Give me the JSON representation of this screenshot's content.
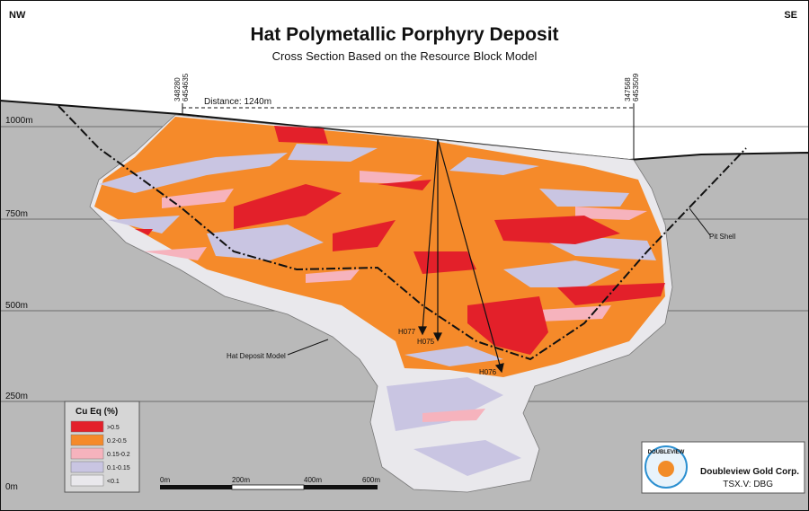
{
  "header": {
    "left": "NW",
    "right": "SE",
    "title": "Hat Polymetallic Porphyry Deposit",
    "subtitle": "Cross Section Based on the Resource Block Model"
  },
  "section": {
    "collar_left": [
      "348280",
      "6454635"
    ],
    "collar_right": [
      "347568",
      "6453509"
    ],
    "distance": "Distance: 1240m",
    "elevations": [
      "1000m",
      "750m",
      "500m",
      "250m",
      "0m"
    ],
    "pit_shell": "Pit Shell",
    "deposit_model": "Hat Deposit Model",
    "holes": [
      "H077",
      "H075",
      "H076"
    ]
  },
  "legend": {
    "title": "Cu Eq (%)",
    "items": [
      {
        "label": ">0.5",
        "color": "#e3202a"
      },
      {
        "label": "0.2-0.5",
        "color": "#f58a2a"
      },
      {
        "label": "0.15-0.2",
        "color": "#f6b3bd"
      },
      {
        "label": "0.1-0.15",
        "color": "#c9c5e2"
      },
      {
        "label": "<0.1",
        "color": "#e9e8ec"
      }
    ]
  },
  "scale_bar": {
    "ticks": [
      "0m",
      "200m",
      "400m",
      "600m"
    ]
  },
  "logo": {
    "mark": "DOUBLEVIEW",
    "company": "Doubleview Gold Corp.",
    "ticker": "TSX.V: DBG"
  }
}
